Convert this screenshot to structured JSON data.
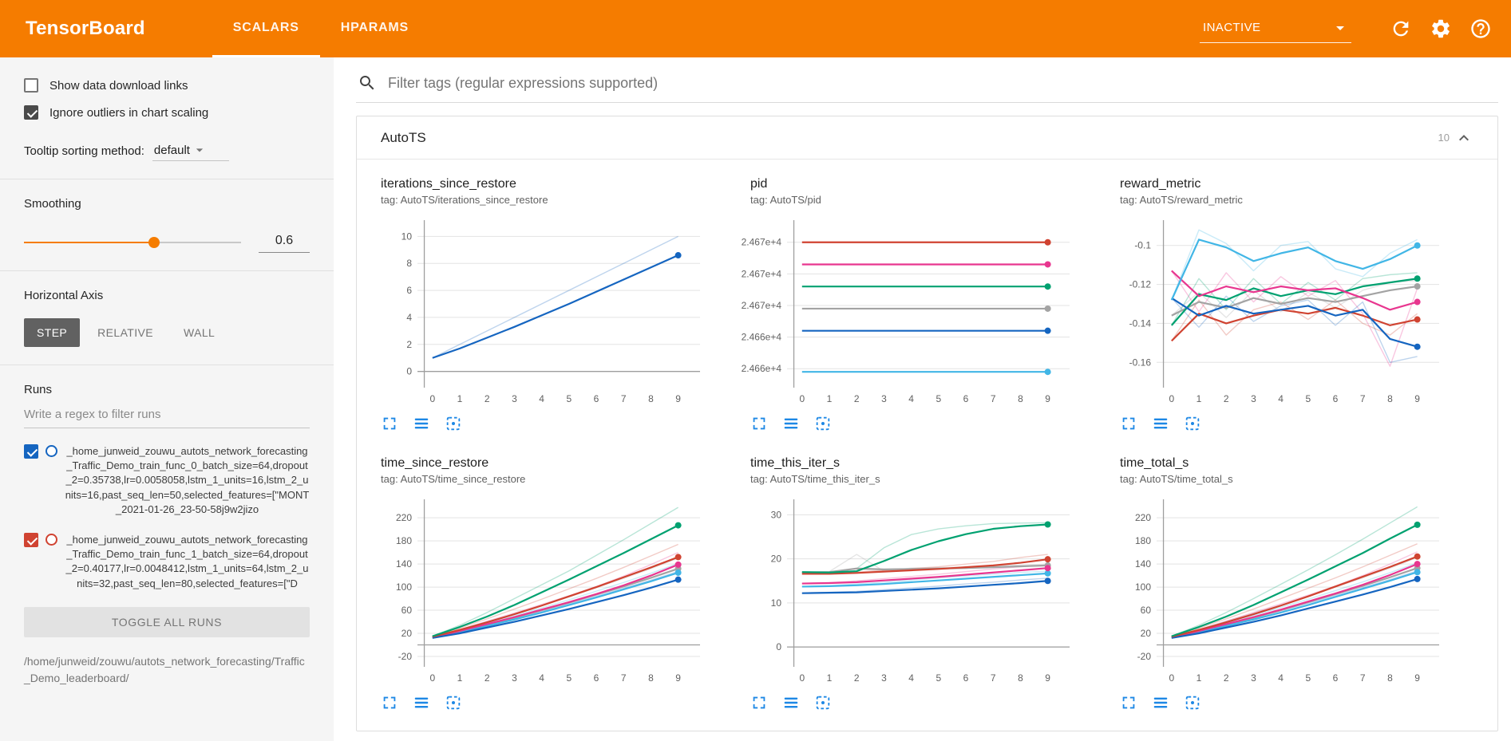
{
  "header": {
    "title": "TensorBoard",
    "tabs": [
      {
        "label": "SCALARS"
      },
      {
        "label": "HPARAMS"
      }
    ],
    "status_value": "INACTIVE"
  },
  "filter": {
    "placeholder": "Filter tags (regular expressions supported)"
  },
  "sidebar": {
    "show_download": "Show data download links",
    "ignore_outliers": "Ignore outliers in chart scaling",
    "tooltip_label": "Tooltip sorting method:",
    "tooltip_value": "default",
    "smoothing_label": "Smoothing",
    "smoothing_value": "0.6",
    "haxis_label": "Horizontal Axis",
    "haxis_buttons": [
      "STEP",
      "RELATIVE",
      "WALL"
    ],
    "runs_label": "Runs",
    "runs_filter_placeholder": "Write a regex to filter runs",
    "runs": [
      {
        "name": "_home_junweid_zouwu_autots_network_forecasting_Traffic_Demo_train_func_0_batch_size=64,dropout_2=0.35738,lr=0.0058058,lstm_1_units=16,lstm_2_units=16,past_seq_len=50,selected_features=[\"MONT_2021-01-26_23-50-58j9w2jizo",
        "color": "#1565c0",
        "checked": true
      },
      {
        "name": "_home_junweid_zouwu_autots_network_forecasting_Traffic_Demo_train_func_1_batch_size=64,dropout_2=0.40177,lr=0.0048412,lstm_1_units=64,lstm_2_units=32,past_seq_len=80,selected_features=[\"D",
        "color": "#d04331",
        "checked": true
      }
    ],
    "toggle_all": "TOGGLE ALL RUNS",
    "path": "/home/junweid/zouwu/autots_network_forecasting/Traffic_Demo_leaderboard/"
  },
  "card": {
    "title": "AutoTS",
    "count": "10"
  },
  "icons": {
    "header": [
      "refresh-icon",
      "gear-icon",
      "help-icon"
    ],
    "status_dropdown": "chevron-down-icon",
    "filter": "search-icon",
    "card_collapse": "chevron-up-icon",
    "chart_toolbar": [
      "expand-icon",
      "data-table-icon",
      "fit-domain-icon"
    ]
  },
  "colors": {
    "header_bg": "#f57c00",
    "chart_tool_icons": "#1e88e5",
    "runs_palette": {
      "blue": "#1565c0",
      "red": "#d04331",
      "green": "#00a170",
      "pink": "#e8368f",
      "cyan": "#41b6e6",
      "gray": "#a3a3a3"
    }
  },
  "chart_data": [
    {
      "type": "line",
      "title": "iterations_since_restore",
      "tag": "tag: AutoTS/iterations_since_restore",
      "x": [
        0,
        1,
        2,
        3,
        4,
        5,
        6,
        7,
        8,
        9
      ],
      "ylim": [
        -1.2,
        11.2
      ],
      "yticks": [
        0,
        2,
        4,
        6,
        8,
        10
      ],
      "ytick_labels": [
        "0",
        "2",
        "4",
        "6",
        "8",
        "10"
      ],
      "zero_line": true,
      "series": [
        {
          "name": "blue",
          "color": "#1565c0",
          "values": [
            1.0,
            1.7,
            2.5,
            3.3,
            4.15,
            5.0,
            5.9,
            6.8,
            7.7,
            8.6
          ],
          "raw": [
            1,
            2,
            3,
            4,
            5,
            6,
            7,
            8,
            9,
            10
          ]
        }
      ]
    },
    {
      "type": "line",
      "title": "pid",
      "tag": "tag: AutoTS/pid",
      "x": [
        0,
        1,
        2,
        3,
        4,
        5,
        6,
        7,
        8,
        9
      ],
      "ylim": [
        24660.8,
        24671.4
      ],
      "yticks": [
        24670,
        24668,
        24666,
        24664,
        24662
      ],
      "ytick_labels": [
        "2.467e+4",
        "2.467e+4",
        "2.467e+4",
        "2.466e+4",
        "2.466e+4"
      ],
      "zero_line": false,
      "series": [
        {
          "name": "red",
          "color": "#d04331",
          "const": 24670.0
        },
        {
          "name": "pink",
          "color": "#e8368f",
          "const": 24668.6
        },
        {
          "name": "green",
          "color": "#00a170",
          "const": 24667.2
        },
        {
          "name": "gray",
          "color": "#a3a3a3",
          "const": 24665.8
        },
        {
          "name": "blue",
          "color": "#1565c0",
          "const": 24664.4
        },
        {
          "name": "cyan",
          "color": "#41b6e6",
          "const": 24661.8
        }
      ]
    },
    {
      "type": "line",
      "title": "reward_metric",
      "tag": "tag: AutoTS/reward_metric",
      "x": [
        0,
        1,
        2,
        3,
        4,
        5,
        6,
        7,
        8,
        9
      ],
      "ylim": [
        -0.173,
        -0.087
      ],
      "yticks": [
        -0.1,
        -0.12,
        -0.14,
        -0.16
      ],
      "ytick_labels": [
        "-0.1",
        "-0.12",
        "-0.14",
        "-0.16"
      ],
      "zero_line": false,
      "series": [
        {
          "name": "gray",
          "color": "#a3a3a3",
          "values": [
            -0.136,
            -0.129,
            -0.132,
            -0.127,
            -0.13,
            -0.127,
            -0.129,
            -0.126,
            -0.123,
            -0.121
          ],
          "raw": [
            -0.136,
            -0.124,
            -0.137,
            -0.123,
            -0.134,
            -0.124,
            -0.132,
            -0.123,
            -0.119,
            -0.118
          ]
        },
        {
          "name": "green",
          "color": "#00a170",
          "values": [
            -0.141,
            -0.125,
            -0.128,
            -0.122,
            -0.126,
            -0.123,
            -0.125,
            -0.121,
            -0.119,
            -0.117
          ],
          "raw": [
            -0.141,
            -0.117,
            -0.133,
            -0.117,
            -0.13,
            -0.119,
            -0.128,
            -0.117,
            -0.115,
            -0.114
          ]
        },
        {
          "name": "pink",
          "color": "#e8368f",
          "values": [
            -0.113,
            -0.126,
            -0.121,
            -0.124,
            -0.121,
            -0.123,
            -0.122,
            -0.127,
            -0.133,
            -0.129
          ],
          "raw": [
            -0.113,
            -0.134,
            -0.114,
            -0.129,
            -0.116,
            -0.126,
            -0.118,
            -0.135,
            -0.162,
            -0.122
          ]
        },
        {
          "name": "red",
          "color": "#d04331",
          "values": [
            -0.149,
            -0.135,
            -0.14,
            -0.136,
            -0.133,
            -0.135,
            -0.132,
            -0.136,
            -0.141,
            -0.138
          ],
          "raw": [
            -0.149,
            -0.128,
            -0.146,
            -0.133,
            -0.129,
            -0.138,
            -0.128,
            -0.14,
            -0.146,
            -0.135
          ]
        },
        {
          "name": "blue",
          "color": "#1565c0",
          "values": [
            -0.127,
            -0.136,
            -0.131,
            -0.135,
            -0.133,
            -0.131,
            -0.136,
            -0.133,
            -0.148,
            -0.152
          ],
          "raw": [
            -0.127,
            -0.142,
            -0.126,
            -0.139,
            -0.131,
            -0.128,
            -0.141,
            -0.129,
            -0.16,
            -0.157
          ]
        },
        {
          "name": "cyan",
          "color": "#41b6e6",
          "values": [
            -0.128,
            -0.097,
            -0.101,
            -0.108,
            -0.104,
            -0.101,
            -0.108,
            -0.112,
            -0.107,
            -0.1
          ],
          "raw": [
            -0.128,
            -0.092,
            -0.099,
            -0.113,
            -0.1,
            -0.098,
            -0.112,
            -0.116,
            -0.104,
            -0.097
          ]
        }
      ]
    },
    {
      "type": "line",
      "title": "time_since_restore",
      "tag": "tag: AutoTS/time_since_restore",
      "x": [
        0,
        1,
        2,
        3,
        4,
        5,
        6,
        7,
        8,
        9
      ],
      "ylim": [
        -38,
        252
      ],
      "yticks": [
        -20,
        20,
        60,
        100,
        140,
        180,
        220
      ],
      "ytick_labels": [
        "-20",
        "20",
        "60",
        "100",
        "140",
        "180",
        "220"
      ],
      "zero_line": true,
      "series": [
        {
          "name": "gray",
          "color": "#a3a3a3",
          "values": [
            14,
            24,
            35,
            47,
            60,
            73,
            87,
            101,
            116,
            132
          ],
          "raw": [
            14,
            27,
            40,
            54,
            68,
            83,
            99,
            115,
            132,
            150
          ]
        },
        {
          "name": "cyan",
          "color": "#41b6e6",
          "values": [
            13,
            22,
            33,
            44,
            56,
            69,
            82,
            96,
            110,
            125
          ],
          "raw": [
            13,
            25,
            37,
            50,
            64,
            78,
            93,
            108,
            124,
            141
          ]
        },
        {
          "name": "pink",
          "color": "#e8368f",
          "values": [
            13,
            24,
            36,
            48,
            61,
            74,
            88,
            103,
            120,
            139
          ],
          "raw": [
            13,
            26,
            41,
            55,
            70,
            85,
            101,
            119,
            139,
            160
          ]
        },
        {
          "name": "blue",
          "color": "#1565c0",
          "values": [
            12,
            20,
            30,
            40,
            51,
            62,
            74,
            86,
            99,
            113
          ],
          "raw": [
            12,
            23,
            34,
            46,
            58,
            71,
            84,
            98,
            112,
            127
          ]
        },
        {
          "name": "red",
          "color": "#d04331",
          "values": [
            14,
            26,
            39,
            53,
            68,
            84,
            100,
            117,
            134,
            152
          ],
          "raw": [
            14,
            29,
            45,
            62,
            79,
            97,
            115,
            134,
            154,
            174
          ]
        },
        {
          "name": "green",
          "color": "#00a170",
          "values": [
            15,
            31,
            49,
            69,
            91,
            113,
            136,
            159,
            183,
            207
          ],
          "raw": [
            15,
            34,
            56,
            80,
            104,
            128,
            155,
            182,
            210,
            238
          ]
        }
      ]
    },
    {
      "type": "line",
      "title": "time_this_iter_s",
      "tag": "tag: AutoTS/time_this_iter_s",
      "x": [
        0,
        1,
        2,
        3,
        4,
        5,
        6,
        7,
        8,
        9
      ],
      "ylim": [
        -4.5,
        33.5
      ],
      "yticks": [
        0,
        10,
        20,
        30
      ],
      "ytick_labels": [
        "0",
        "10",
        "20",
        "30"
      ],
      "zero_line": true,
      "series": [
        {
          "name": "gray",
          "color": "#a3a3a3",
          "values": [
            16.9,
            17.0,
            17.8,
            17.6,
            17.7,
            17.8,
            17.9,
            18.1,
            18.3,
            18.5
          ],
          "raw": [
            16.9,
            17.1,
            21.0,
            17.2,
            17.9,
            18.0,
            18.1,
            18.4,
            18.6,
            18.8
          ]
        },
        {
          "name": "cyan",
          "color": "#41b6e6",
          "values": [
            13.7,
            13.8,
            14.0,
            14.3,
            14.7,
            15.1,
            15.5,
            15.9,
            16.3,
            16.7
          ],
          "raw": [
            13.7,
            13.9,
            14.3,
            14.7,
            15.2,
            15.7,
            16.1,
            16.5,
            16.9,
            17.2
          ]
        },
        {
          "name": "pink",
          "color": "#e8368f",
          "values": [
            14.4,
            14.5,
            14.7,
            15.1,
            15.5,
            15.9,
            16.4,
            16.9,
            17.4,
            17.9
          ],
          "raw": [
            14.4,
            14.6,
            15.0,
            15.5,
            16.0,
            16.5,
            17.1,
            17.7,
            18.2,
            18.6
          ]
        },
        {
          "name": "blue",
          "color": "#1565c0",
          "values": [
            12.2,
            12.3,
            12.4,
            12.7,
            13.0,
            13.3,
            13.7,
            14.1,
            14.5,
            15.0
          ],
          "raw": [
            12.2,
            12.4,
            12.6,
            13.0,
            13.4,
            13.8,
            14.3,
            14.7,
            15.2,
            15.6
          ]
        },
        {
          "name": "red",
          "color": "#d04331",
          "values": [
            16.6,
            16.6,
            16.8,
            17.1,
            17.4,
            17.7,
            18.1,
            18.5,
            19.1,
            19.9
          ],
          "raw": [
            16.6,
            16.7,
            17.0,
            17.4,
            17.8,
            18.2,
            18.8,
            19.4,
            20.3,
            21.0
          ]
        },
        {
          "name": "green",
          "color": "#00a170",
          "values": [
            17.0,
            16.9,
            17.2,
            19.5,
            22.0,
            24.0,
            25.6,
            26.8,
            27.4,
            27.8
          ],
          "raw": [
            17.0,
            16.8,
            17.8,
            22.5,
            25.5,
            26.8,
            27.5,
            28.0,
            28.1,
            28.2
          ]
        }
      ]
    },
    {
      "type": "line",
      "title": "time_total_s",
      "tag": "tag: AutoTS/time_total_s",
      "x": [
        0,
        1,
        2,
        3,
        4,
        5,
        6,
        7,
        8,
        9
      ],
      "ylim": [
        -38,
        252
      ],
      "yticks": [
        -20,
        20,
        60,
        100,
        140,
        180,
        220
      ],
      "ytick_labels": [
        "-20",
        "20",
        "60",
        "100",
        "140",
        "180",
        "220"
      ],
      "zero_line": true,
      "series": [
        {
          "name": "gray",
          "color": "#a3a3a3",
          "values": [
            14,
            24,
            35,
            47,
            60,
            74,
            88,
            102,
            117,
            133
          ],
          "raw": [
            14,
            27,
            41,
            55,
            69,
            84,
            100,
            116,
            133,
            151
          ]
        },
        {
          "name": "cyan",
          "color": "#41b6e6",
          "values": [
            13,
            22,
            33,
            44,
            56,
            69,
            83,
            97,
            111,
            126
          ],
          "raw": [
            13,
            25,
            37,
            51,
            65,
            79,
            94,
            109,
            125,
            142
          ]
        },
        {
          "name": "pink",
          "color": "#e8368f",
          "values": [
            13,
            24,
            36,
            48,
            61,
            75,
            89,
            104,
            121,
            140
          ],
          "raw": [
            13,
            26,
            41,
            56,
            71,
            86,
            102,
            120,
            140,
            161
          ]
        },
        {
          "name": "blue",
          "color": "#1565c0",
          "values": [
            12,
            20,
            30,
            40,
            51,
            63,
            75,
            87,
            100,
            114
          ],
          "raw": [
            12,
            23,
            35,
            47,
            59,
            72,
            85,
            99,
            113,
            128
          ]
        },
        {
          "name": "red",
          "color": "#d04331",
          "values": [
            14,
            26,
            39,
            53,
            68,
            84,
            101,
            118,
            135,
            153
          ],
          "raw": [
            14,
            29,
            45,
            62,
            80,
            98,
            116,
            135,
            155,
            175
          ]
        },
        {
          "name": "green",
          "color": "#00a170",
          "values": [
            15,
            31,
            49,
            69,
            91,
            113,
            136,
            159,
            184,
            208
          ],
          "raw": [
            15,
            34,
            56,
            80,
            105,
            130,
            156,
            183,
            211,
            239
          ]
        }
      ]
    }
  ]
}
